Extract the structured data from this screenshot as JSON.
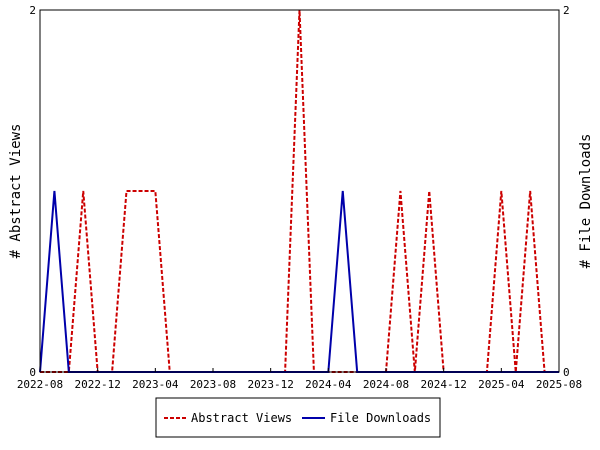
{
  "chart_data": {
    "type": "line",
    "x_ticks": [
      "2022-08",
      "2022-12",
      "2023-04",
      "2023-08",
      "2023-12",
      "2024-04",
      "2024-08",
      "2024-12",
      "2025-04",
      "2025-08"
    ],
    "x": [
      "2022-08",
      "2022-09",
      "2022-10",
      "2022-11",
      "2022-12",
      "2023-01",
      "2023-02",
      "2023-03",
      "2023-04",
      "2023-05",
      "2023-06",
      "2023-07",
      "2023-08",
      "2023-09",
      "2023-10",
      "2023-11",
      "2023-12",
      "2024-01",
      "2024-02",
      "2024-03",
      "2024-04",
      "2024-05",
      "2024-06",
      "2024-07",
      "2024-08",
      "2024-09",
      "2024-10",
      "2024-11",
      "2024-12",
      "2025-01",
      "2025-02",
      "2025-03",
      "2025-04",
      "2025-05",
      "2025-06",
      "2025-07",
      "2025-08"
    ],
    "series": [
      {
        "name": "Abstract Views",
        "axis": "left",
        "color": "#cc0000",
        "style": "dashed",
        "values": [
          0,
          0,
          0,
          1,
          0,
          0,
          1,
          1,
          1,
          0,
          0,
          0,
          0,
          0,
          0,
          0,
          0,
          0,
          2,
          0,
          0,
          0,
          0,
          0,
          0,
          1,
          0,
          1,
          0,
          0,
          0,
          0,
          1,
          0,
          1,
          0,
          0
        ]
      },
      {
        "name": "File Downloads",
        "axis": "right",
        "color": "#0000aa",
        "style": "solid",
        "values": [
          0,
          1,
          0,
          0,
          0,
          0,
          0,
          0,
          0,
          0,
          0,
          0,
          0,
          0,
          0,
          0,
          0,
          0,
          0,
          0,
          0,
          1,
          0,
          0,
          0,
          0,
          0,
          0,
          0,
          0,
          0,
          0,
          0,
          0,
          0,
          0,
          0
        ]
      }
    ],
    "ylim": [
      0,
      2
    ],
    "y_ticks": [
      "0",
      "2"
    ],
    "y2lim": [
      0,
      2
    ],
    "y2_ticks": [
      "0",
      "2"
    ],
    "ylabel": "# Abstract Views",
    "y2label": "# File Downloads",
    "legend_position": "bottom"
  }
}
